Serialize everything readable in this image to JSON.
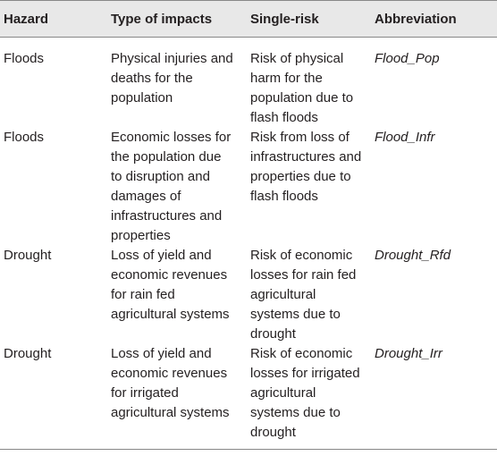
{
  "table": {
    "header": [
      "Hazard",
      "Type of impacts",
      "Single-risk",
      "Abbreviation"
    ],
    "rows": [
      [
        [
          "Floods"
        ],
        [
          "Physical injuries and",
          "deaths for the",
          "population"
        ],
        [
          "Risk of physical",
          "harm for the",
          "population due to",
          "flash floods"
        ],
        [
          "Flood_Pop"
        ]
      ],
      [
        [
          "Floods"
        ],
        [
          "Economic losses for",
          "the population due",
          "to disruption and",
          "damages of",
          "infrastructures and",
          "properties"
        ],
        [
          "Risk from loss of",
          "infrastructures and",
          "properties due to",
          "flash floods"
        ],
        [
          "Flood_Infr"
        ]
      ],
      [
        [
          "Drought"
        ],
        [
          "Loss of yield and",
          "economic revenues",
          "for rain fed",
          "agricultural systems"
        ],
        [
          "Risk of economic",
          "losses for rain fed",
          "agricultural",
          "systems due to",
          "drought"
        ],
        [
          "Drought_Rfd"
        ]
      ],
      [
        [
          "Drought"
        ],
        [
          "Loss of yield and",
          "economic revenues",
          "for irrigated",
          "agricultural systems"
        ],
        [
          "Risk of economic",
          "losses for irrigated",
          "agricultural",
          "systems due to",
          "drought"
        ],
        [
          "Drought_Irr"
        ]
      ]
    ]
  }
}
